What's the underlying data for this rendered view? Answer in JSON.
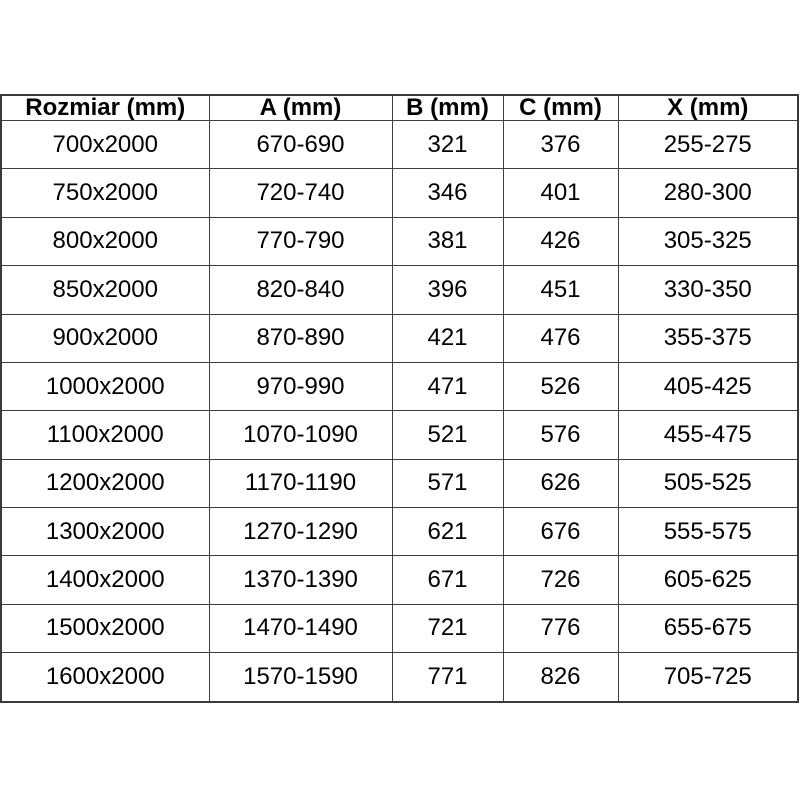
{
  "chart_data": {
    "type": "table",
    "title": "",
    "columns": [
      "Rozmiar (mm)",
      "A (mm)",
      "B (mm)",
      "C (mm)",
      "X (mm)"
    ],
    "rows": [
      [
        "700x2000",
        "670-690",
        "321",
        "376",
        "255-275"
      ],
      [
        "750x2000",
        "720-740",
        "346",
        "401",
        "280-300"
      ],
      [
        "800x2000",
        "770-790",
        "381",
        "426",
        "305-325"
      ],
      [
        "850x2000",
        "820-840",
        "396",
        "451",
        "330-350"
      ],
      [
        "900x2000",
        "870-890",
        "421",
        "476",
        "355-375"
      ],
      [
        "1000x2000",
        "970-990",
        "471",
        "526",
        "405-425"
      ],
      [
        "1100x2000",
        "1070-1090",
        "521",
        "576",
        "455-475"
      ],
      [
        "1200x2000",
        "1170-1190",
        "571",
        "626",
        "505-525"
      ],
      [
        "1300x2000",
        "1270-1290",
        "621",
        "676",
        "555-575"
      ],
      [
        "1400x2000",
        "1370-1390",
        "671",
        "726",
        "605-625"
      ],
      [
        "1500x2000",
        "1470-1490",
        "721",
        "776",
        "655-675"
      ],
      [
        "1600x2000",
        "1570-1590",
        "771",
        "826",
        "705-725"
      ]
    ],
    "layout": {
      "grid": true,
      "header_bold": true,
      "text_align": "center"
    },
    "colors": {
      "background": "#ffffff",
      "text": "#000000",
      "border": "#3f3f3f"
    }
  }
}
